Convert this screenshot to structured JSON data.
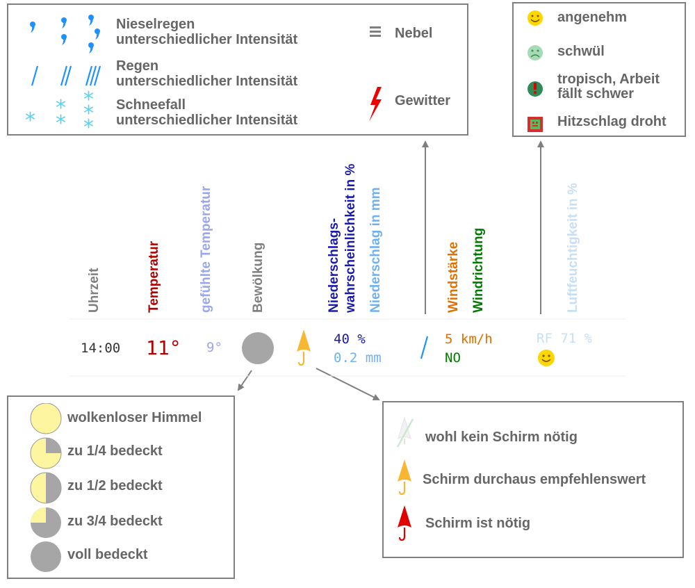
{
  "precip_legend": {
    "drizzle": "Nieselregen",
    "drizzle_sub": "unterschiedlicher Intensität",
    "rain": "Regen",
    "rain_sub": "unterschiedlicher Intensität",
    "snow": "Schneefall",
    "snow_sub": "unterschiedlicher Intensität",
    "fog": "Nebel",
    "thunder": "Gewitter"
  },
  "comfort_legend": {
    "pleasant": "angenehm",
    "humid": "schwül",
    "tropical_1": "tropisch, Arbeit",
    "tropical_2": "fällt schwer",
    "heatstroke": "Hitzschlag droht"
  },
  "columns": {
    "time": "Uhrzeit",
    "temperature": "Temperatur",
    "felt_temperature": "gefühlte Temperatur",
    "cloud_cover": "Bewölkung",
    "precip_prob_1": "Niederschlags-",
    "precip_prob_2": "wahrscheinlichkeit in %",
    "precip_amount": "Niederschlag in mm",
    "wind_strength": "Windstärke",
    "wind_direction": "Windrichtung",
    "humidity": "Luftfeuchtigkeit in %"
  },
  "row": {
    "time": "14:00",
    "temperature": "11°",
    "felt_temperature": "9°",
    "precip_probability": "40 %",
    "precip_amount": "0.2 mm",
    "wind_speed": "5 km/h",
    "wind_dir": "NO",
    "humidity": "RF 71 %"
  },
  "cloud_legend": {
    "clear": "wolkenloser Himmel",
    "quarter": "zu 1/4 bedeckt",
    "half": "zu 1/2 bedeckt",
    "three_quarter": "zu 3/4 bedeckt",
    "full": "voll bedeckt"
  },
  "umbrella_legend": {
    "none": "wohl kein Schirm nötig",
    "recommended": "Schirm durchaus empfehlenswert",
    "needed": "Schirm ist nötig"
  },
  "colors": {
    "temperature": "#b30000",
    "felt": "#9aa7e8",
    "precip_prob": "#1a1aaa",
    "precip_mm": "#6fb0f0",
    "wind_strength": "#e07000",
    "wind_dir": "#007a00",
    "humidity": "#c6dff2",
    "cloud_gray": "#a6a6a6",
    "cloud_yellow": "#fdf5a0"
  }
}
